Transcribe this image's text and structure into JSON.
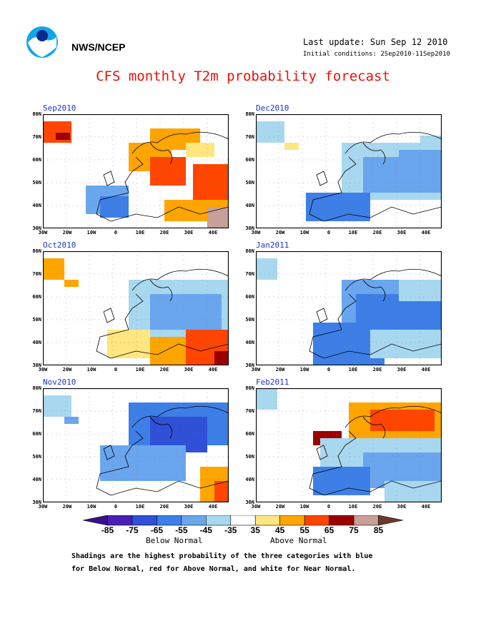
{
  "header": {
    "org": "NWS/NCEP",
    "last_update": "Last update: Sun Sep 12 2010",
    "initial_conditions": "Initial conditions: 2Sep2010-11Sep2010",
    "title": "CFS monthly T2m probability forecast"
  },
  "panels": [
    {
      "title": "Sep2010"
    },
    {
      "title": "Dec2010"
    },
    {
      "title": "Oct2010"
    },
    {
      "title": "Jan2011"
    },
    {
      "title": "Nov2010"
    },
    {
      "title": "Feb2011"
    }
  ],
  "axes": {
    "lat_labels": [
      "80N",
      "70N",
      "60N",
      "50N",
      "40N",
      "30N"
    ],
    "lon_labels": [
      "30W",
      "20W",
      "10W",
      "0",
      "10E",
      "20E",
      "30E",
      "40E"
    ]
  },
  "colorbar": {
    "labels": [
      "-85",
      "-75",
      "-65",
      "-55",
      "-45",
      "-35",
      "35",
      "45",
      "55",
      "65",
      "75",
      "85"
    ],
    "colors": [
      "#4a1fb7",
      "#3050d8",
      "#3d7fe6",
      "#6aa6ee",
      "#a8d8f0",
      "#ffffff",
      "#ffe680",
      "#ffa500",
      "#ff4500",
      "#9b0000",
      "#c8a097"
    ],
    "below_label": "Below Normal",
    "above_label": "Above Normal"
  },
  "footnote": {
    "line1": "Shadings are the highest probability of the three categories with blue",
    "line2": "for Below Normal, red for Above Normal, and white for Near Normal."
  }
}
